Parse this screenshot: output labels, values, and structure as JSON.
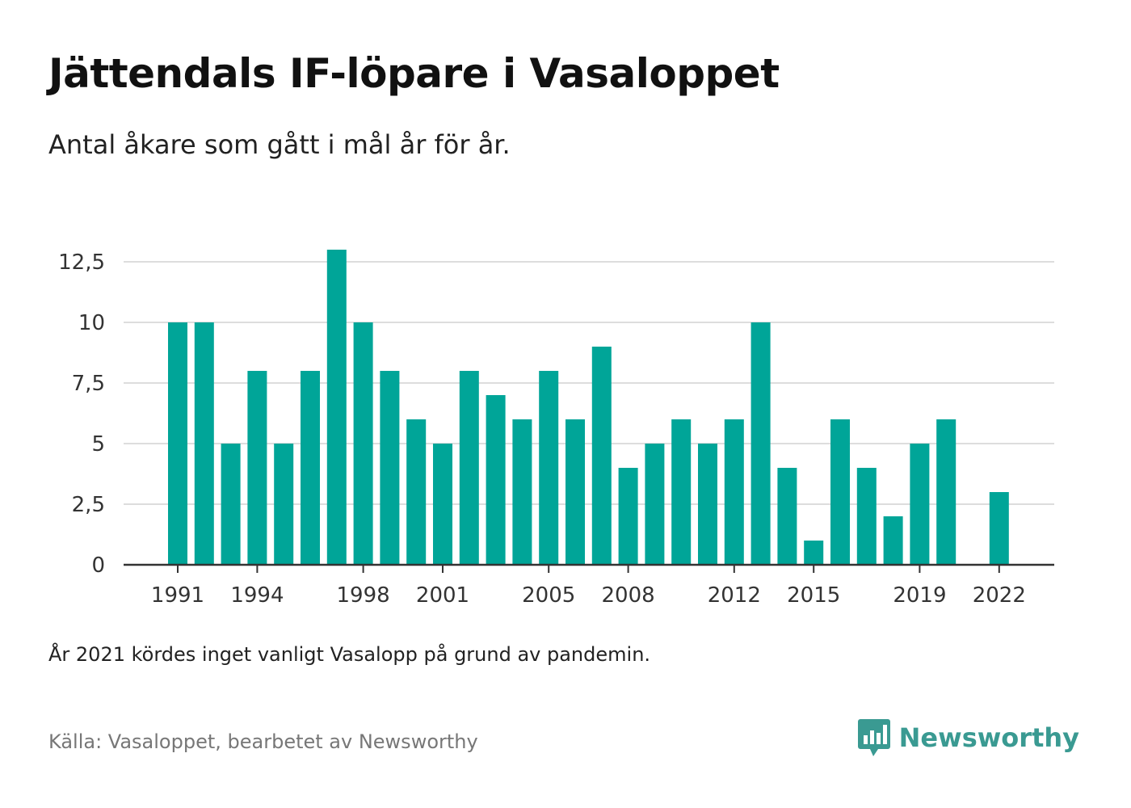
{
  "title": "Jättendals IF-löpare i Vasaloppet",
  "subtitle": "Antal åkare som gått i mål år för år.",
  "note": "År 2021 kördes inget vanligt Vasalopp på grund av pandemin.",
  "source": "Källa: Vasaloppet, bearbetet av Newsworthy",
  "logo": {
    "text": "Newsworthy",
    "icon": "newsworthy-logo-icon",
    "color": "#3a9a92"
  },
  "chart_data": {
    "type": "bar",
    "title": "Jättendals IF-löpare i Vasaloppet",
    "subtitle": "Antal åkare som gått i mål år för år.",
    "xlabel": "",
    "ylabel": "",
    "ylim": [
      0,
      13.5
    ],
    "y_ticks": [
      0,
      2.5,
      5,
      7.5,
      10,
      12.5
    ],
    "y_tick_labels": [
      "0",
      "2,5",
      "5",
      "7,5",
      "10",
      "12,5"
    ],
    "x_tick_labels": [
      "1991",
      "1994",
      "1998",
      "2001",
      "2005",
      "2008",
      "2012",
      "2015",
      "2019",
      "2022"
    ],
    "grid": true,
    "bar_color": "#00a598",
    "categories": [
      1991,
      1992,
      1993,
      1994,
      1995,
      1996,
      1997,
      1998,
      1999,
      2000,
      2001,
      2002,
      2003,
      2004,
      2005,
      2006,
      2007,
      2008,
      2009,
      2010,
      2011,
      2012,
      2013,
      2014,
      2015,
      2016,
      2017,
      2018,
      2019,
      2020,
      2021,
      2022
    ],
    "values": [
      10,
      10,
      5,
      8,
      5,
      8,
      13,
      10,
      8,
      6,
      5,
      8,
      7,
      6,
      8,
      6,
      9,
      4,
      5,
      6,
      5,
      6,
      10,
      4,
      1,
      6,
      4,
      2,
      5,
      6,
      null,
      3
    ]
  }
}
